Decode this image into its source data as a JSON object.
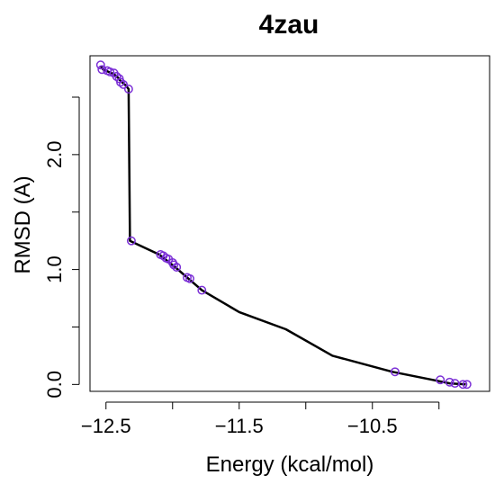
{
  "chart_data": {
    "type": "line",
    "title": "4zau",
    "xlabel": "Energy (kcal/mol)",
    "ylabel": "RMSD (A)",
    "xlim": [
      -12.62,
      -9.62
    ],
    "ylim": [
      -0.06,
      2.86
    ],
    "x_ticks": [
      -12.5,
      -11.5,
      -10.5
    ],
    "x_tick_labels": [
      "−12.5",
      "−11.5",
      "−10.5"
    ],
    "x_minor_ticks": [
      -12.0,
      -11.0,
      -10.0
    ],
    "y_ticks": [
      0.0,
      1.0,
      2.0
    ],
    "y_tick_labels": [
      "0.0",
      "1.0",
      "2.0"
    ],
    "y_minor_ticks": [
      0.5,
      1.5,
      2.5
    ],
    "grid": false,
    "point_color": "#7b2fd6",
    "line_color": "#000000",
    "curve": [
      {
        "x": -12.54,
        "y": 2.77
      },
      {
        "x": -12.52,
        "y": 2.74
      },
      {
        "x": -12.48,
        "y": 2.72
      },
      {
        "x": -12.44,
        "y": 2.7
      },
      {
        "x": -12.41,
        "y": 2.67
      },
      {
        "x": -12.39,
        "y": 2.64
      },
      {
        "x": -12.35,
        "y": 2.6
      },
      {
        "x": -12.33,
        "y": 2.57
      },
      {
        "x": -12.32,
        "y": 1.25
      },
      {
        "x": -12.1,
        "y": 1.13
      },
      {
        "x": -11.98,
        "y": 1.02
      },
      {
        "x": -11.88,
        "y": 0.92
      },
      {
        "x": -11.78,
        "y": 0.82
      },
      {
        "x": -11.5,
        "y": 0.63
      },
      {
        "x": -11.15,
        "y": 0.48
      },
      {
        "x": -10.8,
        "y": 0.25
      },
      {
        "x": -10.35,
        "y": 0.11
      },
      {
        "x": -10.05,
        "y": 0.04
      },
      {
        "x": -9.92,
        "y": 0.01
      },
      {
        "x": -9.8,
        "y": 0.0
      }
    ],
    "points": [
      {
        "x": -12.54,
        "y": 2.78
      },
      {
        "x": -12.53,
        "y": 2.74
      },
      {
        "x": -12.49,
        "y": 2.73
      },
      {
        "x": -12.47,
        "y": 2.72
      },
      {
        "x": -12.44,
        "y": 2.71
      },
      {
        "x": -12.42,
        "y": 2.68
      },
      {
        "x": -12.4,
        "y": 2.66
      },
      {
        "x": -12.39,
        "y": 2.63
      },
      {
        "x": -12.37,
        "y": 2.61
      },
      {
        "x": -12.33,
        "y": 2.57
      },
      {
        "x": -12.31,
        "y": 1.25
      },
      {
        "x": -12.09,
        "y": 1.13
      },
      {
        "x": -12.07,
        "y": 1.12
      },
      {
        "x": -12.05,
        "y": 1.1
      },
      {
        "x": -12.03,
        "y": 1.09
      },
      {
        "x": -12.0,
        "y": 1.06
      },
      {
        "x": -11.99,
        "y": 1.04
      },
      {
        "x": -11.97,
        "y": 1.02
      },
      {
        "x": -11.89,
        "y": 0.93
      },
      {
        "x": -11.87,
        "y": 0.92
      },
      {
        "x": -11.78,
        "y": 0.82
      },
      {
        "x": -10.33,
        "y": 0.11
      },
      {
        "x": -9.99,
        "y": 0.04
      },
      {
        "x": -9.92,
        "y": 0.02
      },
      {
        "x": -9.88,
        "y": 0.01
      },
      {
        "x": -9.82,
        "y": 0.0
      },
      {
        "x": -9.79,
        "y": 0.0
      }
    ]
  }
}
